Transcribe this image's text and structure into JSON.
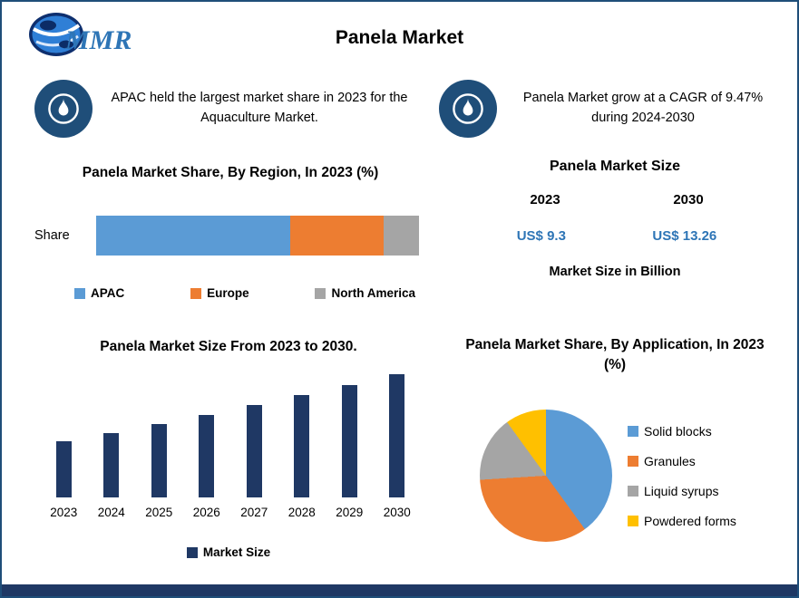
{
  "logo": {
    "text": "MMR"
  },
  "title": "Panela Market",
  "callouts": {
    "left": "APAC held the largest market share in 2023 for the Aquaculture Market.",
    "right": "Panela Market grow at a CAGR of 9.47% during 2024-2030"
  },
  "size_panel": {
    "title": "Panela Market Size",
    "col1_year": "2023",
    "col2_year": "2030",
    "col1_value": "US$ 9.3",
    "col2_value": "US$ 13.26",
    "note": "Market Size in Billion",
    "value_color": "#2E75B6"
  },
  "theme": {
    "border": "#1F4E79",
    "bottom_bar": "#1F3864",
    "callout_circle": "#1F4E79",
    "heading_text": "#000000"
  },
  "chart_data": [
    {
      "type": "bar",
      "subtype": "horizontal-stacked",
      "title": "Panela Market Share, By Region, In 2023 (%)",
      "categories": [
        "Share"
      ],
      "series": [
        {
          "name": "APAC",
          "values": [
            60
          ],
          "color": "#5B9BD5"
        },
        {
          "name": "Europe",
          "values": [
            29
          ],
          "color": "#ED7D31"
        },
        {
          "name": "North America",
          "values": [
            11
          ],
          "color": "#A5A5A5"
        }
      ],
      "xlim": [
        0,
        100
      ],
      "legend_position": "bottom",
      "grid": false
    },
    {
      "type": "bar",
      "title": "Panela Market Size From 2023 to 2030.",
      "categories": [
        "2023",
        "2024",
        "2025",
        "2026",
        "2027",
        "2028",
        "2029",
        "2030"
      ],
      "values": [
        9.3,
        9.8,
        10.3,
        10.85,
        11.45,
        12.0,
        12.6,
        13.26
      ],
      "legend": [
        "Market Size"
      ],
      "color": "#1F3864",
      "ylim": [
        6,
        14
      ],
      "legend_position": "bottom",
      "grid": false
    },
    {
      "type": "pie",
      "title": "Panela Market Share, By Application, In 2023 (%)",
      "slices": [
        {
          "label": "Solid blocks",
          "value": 40,
          "color": "#5B9BD5"
        },
        {
          "label": "Granules",
          "value": 34,
          "color": "#ED7D31"
        },
        {
          "label": "Liquid syrups",
          "value": 16,
          "color": "#A5A5A5"
        },
        {
          "label": "Powdered forms",
          "value": 10,
          "color": "#FFC000"
        }
      ],
      "legend_position": "right"
    }
  ]
}
